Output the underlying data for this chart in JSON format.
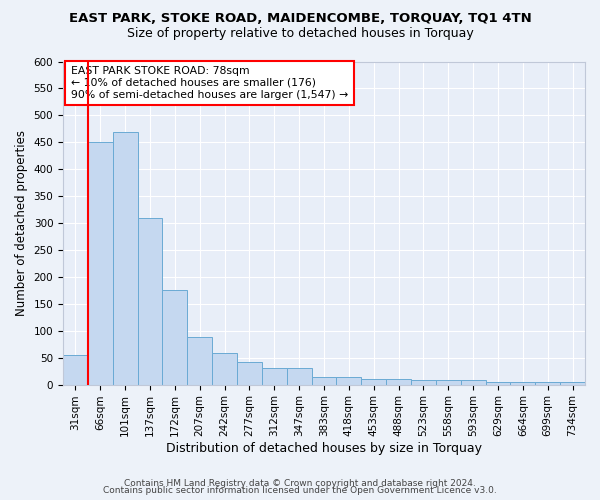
{
  "title": "EAST PARK, STOKE ROAD, MAIDENCOMBE, TORQUAY, TQ1 4TN",
  "subtitle": "Size of property relative to detached houses in Torquay",
  "xlabel": "Distribution of detached houses by size in Torquay",
  "ylabel": "Number of detached properties",
  "bar_labels": [
    "31sqm",
    "66sqm",
    "101sqm",
    "137sqm",
    "172sqm",
    "207sqm",
    "242sqm",
    "277sqm",
    "312sqm",
    "347sqm",
    "383sqm",
    "418sqm",
    "453sqm",
    "488sqm",
    "523sqm",
    "558sqm",
    "593sqm",
    "629sqm",
    "664sqm",
    "699sqm",
    "734sqm"
  ],
  "bar_values": [
    55,
    450,
    470,
    310,
    175,
    88,
    58,
    42,
    30,
    30,
    15,
    15,
    10,
    10,
    8,
    8,
    8,
    5,
    5,
    5,
    5
  ],
  "bar_color": "#c5d8f0",
  "bar_edge_color": "#6aaad4",
  "red_line_x": 0.5,
  "annotation_line1": "EAST PARK STOKE ROAD: 78sqm",
  "annotation_line2": "← 10% of detached houses are smaller (176)",
  "annotation_line3": "90% of semi-detached houses are larger (1,547) →",
  "annotation_box_color": "white",
  "annotation_box_edge": "red",
  "ylim": [
    0,
    600
  ],
  "yticks": [
    0,
    50,
    100,
    150,
    200,
    250,
    300,
    350,
    400,
    450,
    500,
    550,
    600
  ],
  "footer1": "Contains HM Land Registry data © Crown copyright and database right 2024.",
  "footer2": "Contains public sector information licensed under the Open Government Licence v3.0.",
  "bg_color": "#edf2f9",
  "plot_bg_color": "#e8eef8",
  "title_fontsize": 9.5,
  "subtitle_fontsize": 9,
  "tick_fontsize": 7.5,
  "ylabel_fontsize": 8.5,
  "xlabel_fontsize": 9,
  "footer_fontsize": 6.5,
  "annotation_fontsize": 7.8
}
